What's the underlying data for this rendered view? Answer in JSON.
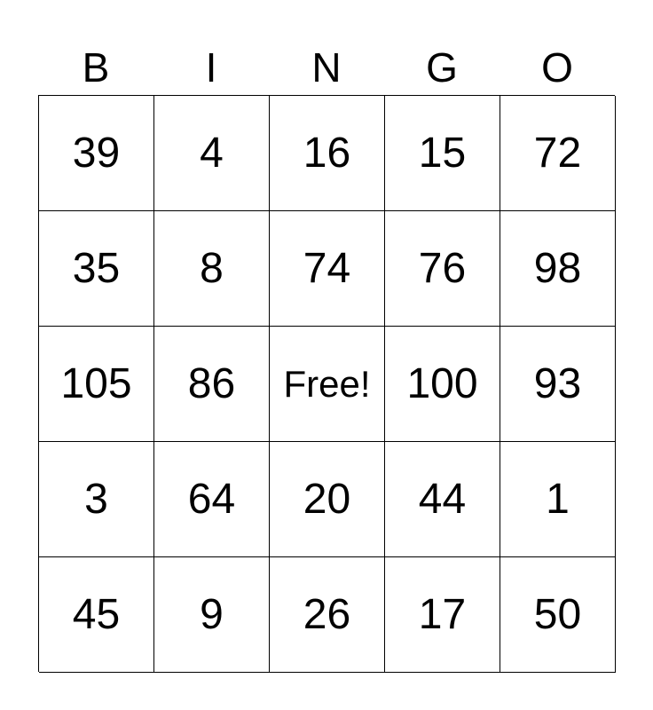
{
  "header": [
    "B",
    "I",
    "N",
    "G",
    "O"
  ],
  "rows": [
    [
      "39",
      "4",
      "16",
      "15",
      "72"
    ],
    [
      "35",
      "8",
      "74",
      "76",
      "98"
    ],
    [
      "105",
      "86",
      "Free!",
      "100",
      "93"
    ],
    [
      "3",
      "64",
      "20",
      "44",
      "1"
    ],
    [
      "45",
      "9",
      "26",
      "17",
      "50"
    ]
  ]
}
